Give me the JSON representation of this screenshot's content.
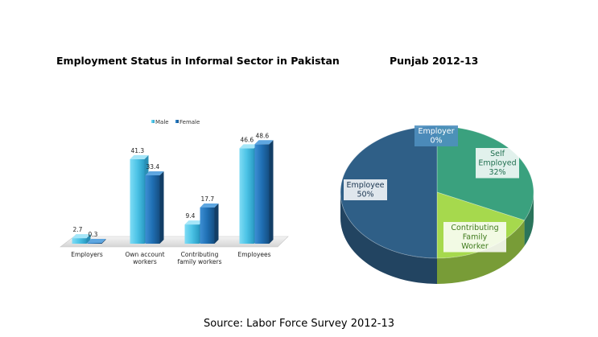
{
  "titles": {
    "left": "Employment Status in Informal Sector in Pakistan",
    "right": "Punjab 2012-13"
  },
  "source": "Source: Labor Force Survey 2012-13",
  "colors": {
    "male": "#4cc3e6",
    "female": "#1f6fb3",
    "employee": "#2f5f87",
    "self_employed": "#3aa17e",
    "contributing": "#a6d94d",
    "employer": "#3aa17e"
  },
  "chart_data": [
    {
      "type": "bar",
      "title": "",
      "categories": [
        [
          "Employers"
        ],
        [
          "Own account",
          "workers"
        ],
        [
          "Contributing",
          "family workers"
        ],
        [
          "Employees"
        ]
      ],
      "series": [
        {
          "name": "Male",
          "values": [
            2.7,
            41.3,
            9.4,
            46.6
          ]
        },
        {
          "name": "Female",
          "values": [
            0.3,
            33.4,
            17.7,
            48.6
          ]
        }
      ],
      "ylim": [
        0,
        55
      ],
      "legend": "top-center",
      "grid": false
    },
    {
      "type": "pie",
      "title": "Punjab 2012-13",
      "slices": [
        {
          "label": [
            "Employer",
            "0%"
          ],
          "value": 0,
          "color_key": "employer"
        },
        {
          "label": [
            "Self",
            "Employed",
            "32%"
          ],
          "value": 32,
          "color_key": "self_employed"
        },
        {
          "label": [
            "Contributing",
            "Family",
            "Worker"
          ],
          "value": 18,
          "color_key": "contributing"
        },
        {
          "label": [
            "Employee",
            "50%"
          ],
          "value": 50,
          "color_key": "employee"
        }
      ]
    }
  ]
}
